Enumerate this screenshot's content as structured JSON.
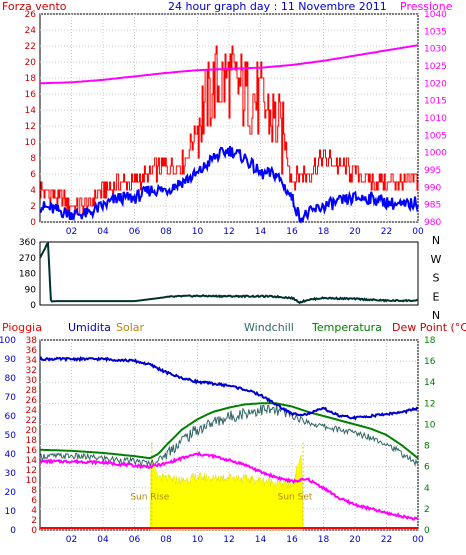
{
  "chart_data": [
    {
      "type": "line",
      "title": "24 hour graph day : 11 Novembre 2011",
      "left_label": "Forza vento",
      "right_label": "Pressione",
      "y_left_ticks": [
        "0",
        "2",
        "4",
        "6",
        "8",
        "10",
        "12",
        "14",
        "16",
        "18",
        "20",
        "22",
        "24",
        "26"
      ],
      "y_right_ticks": [
        "980",
        "985",
        "990",
        "995",
        "1000",
        "1005",
        "1010",
        "1015",
        "1020",
        "1025",
        "1030",
        "1035",
        "1040"
      ],
      "x_ticks": [
        "02",
        "04",
        "06",
        "08",
        "10",
        "12",
        "14",
        "16",
        "18",
        "20",
        "22",
        "00"
      ],
      "ylim_left": [
        0,
        26
      ],
      "ylim_right": [
        980,
        1040
      ],
      "xlim": [
        0,
        24
      ],
      "grid": true,
      "colors": {
        "gust": "#ff0000",
        "speed": "#0000ff",
        "pressure": "#ff00ff",
        "left_axis": "#cc0000",
        "right_axis": "#ff00ff"
      },
      "series": [
        {
          "key": "gust",
          "x": [
            0,
            1,
            2,
            3,
            4,
            5,
            6,
            7,
            8,
            9,
            10,
            10.5,
            11,
            12,
            13,
            14,
            15,
            15.5,
            16,
            16.5,
            17,
            18,
            19,
            20,
            21,
            22,
            23,
            24
          ],
          "y": [
            4,
            3,
            2,
            2,
            4,
            5,
            5,
            6,
            7,
            7,
            12,
            15,
            17,
            18,
            16,
            15,
            12,
            10,
            5,
            6,
            6,
            8,
            7,
            6,
            5,
            5,
            5,
            5
          ]
        },
        {
          "key": "speed",
          "x": [
            0,
            1,
            2,
            3,
            4,
            5,
            6,
            7,
            8,
            9,
            10,
            11,
            12,
            13,
            14,
            15,
            16,
            16.5,
            17,
            18,
            19,
            20,
            21,
            22,
            23,
            24
          ],
          "y": [
            2,
            1.5,
            1,
            1,
            2,
            3,
            3,
            4,
            4,
            5,
            6,
            8,
            9,
            8,
            6,
            6,
            3,
            0.5,
            1,
            2,
            2.5,
            3,
            3,
            2.5,
            2,
            2.5
          ]
        },
        {
          "key": "pressure",
          "x": [
            0,
            2,
            4,
            6,
            8,
            10,
            12,
            14,
            16,
            18,
            20,
            22,
            24
          ],
          "y": [
            1020,
            1020.3,
            1021,
            1022,
            1023,
            1023.8,
            1024.2,
            1024.5,
            1025.3,
            1026.5,
            1028,
            1029.5,
            1031
          ]
        }
      ]
    },
    {
      "type": "line",
      "y_right_ticks": [
        "N",
        "W",
        "S",
        "E",
        "N"
      ],
      "y_left_ticks": [
        "360",
        "270",
        "180",
        "90",
        "0"
      ],
      "ylim": [
        0,
        360
      ],
      "xlim": [
        0,
        24
      ],
      "colors": {
        "direction": "#003030"
      },
      "series": [
        {
          "key": "direction",
          "x": [
            0,
            0.3,
            0.5,
            0.7,
            1,
            3,
            6,
            8,
            9,
            10,
            12,
            14,
            15,
            16,
            16.5,
            17,
            18,
            20,
            22,
            24
          ],
          "y": [
            270,
            320,
            360,
            20,
            22,
            22,
            22,
            45,
            50,
            52,
            50,
            50,
            48,
            40,
            15,
            30,
            40,
            35,
            25,
            25
          ]
        }
      ]
    },
    {
      "type": "line",
      "labels": {
        "pioggia": "Pioggia",
        "umidita": "Umidita",
        "solar": "Solar",
        "windchill": "Windchill",
        "temperatura": "Temperatura",
        "dewpoint": "Dew Point (°C)"
      },
      "y_left_ticks": [
        "0",
        "10",
        "20",
        "30",
        "40",
        "50",
        "60",
        "70",
        "80",
        "90",
        "100"
      ],
      "y_mid_ticks": [
        "0",
        "2",
        "4",
        "6",
        "8",
        "10",
        "12",
        "14",
        "16",
        "18",
        "20",
        "22",
        "24",
        "26",
        "28",
        "30",
        "32",
        "34",
        "36",
        "38"
      ],
      "y_right_ticks": [
        "0",
        "2",
        "4",
        "6",
        "8",
        "10",
        "12",
        "14",
        "16",
        "18"
      ],
      "x_ticks": [
        "02",
        "04",
        "06",
        "08",
        "10",
        "12",
        "14",
        "16",
        "18",
        "20",
        "22",
        "00"
      ],
      "ylim_left": [
        0,
        100
      ],
      "ylim_right": [
        0,
        18
      ],
      "xlim": [
        0,
        24
      ],
      "annotations": {
        "sunrise": "Sun Rise",
        "sunset": "Sun Set"
      },
      "sunrise_hour": 7.1,
      "sunset_hour": 16.7,
      "colors": {
        "humidity": "#0000cc",
        "temperature": "#008000",
        "windchill": "#336666",
        "dewpoint": "#ff00ff",
        "solar": "#ffff00",
        "rain": "#ff0000",
        "pioggia_axis": "#0000cc",
        "mid_axis": "#cc0000",
        "right_axis": "#008000"
      },
      "series": [
        {
          "key": "humidity",
          "x": [
            0,
            2,
            4,
            6,
            7,
            8,
            9,
            10,
            11,
            12,
            13,
            14,
            15,
            16,
            17,
            18,
            19,
            20,
            21,
            22,
            23,
            24
          ],
          "y": [
            90,
            90,
            90,
            89,
            87,
            83,
            80,
            78,
            77,
            76,
            74,
            71,
            66,
            61,
            61,
            64,
            60,
            59,
            60,
            61,
            62,
            64
          ]
        },
        {
          "key": "temperature",
          "x": [
            0,
            2,
            4,
            6,
            7,
            7.5,
            8,
            9,
            10,
            11,
            12,
            13,
            14,
            15,
            16,
            17,
            18,
            19,
            20,
            21,
            22,
            23,
            24
          ],
          "y": [
            7.6,
            7.5,
            7.3,
            7,
            6.8,
            7.2,
            8,
            9.5,
            10.5,
            11.2,
            11.6,
            11.9,
            12,
            12,
            11.7,
            11.2,
            10.8,
            10.4,
            10,
            9.6,
            9,
            8,
            6.8
          ]
        },
        {
          "key": "windchill",
          "x": [
            0,
            2,
            4,
            6,
            7,
            7.5,
            8,
            9,
            10,
            11,
            12,
            13,
            14,
            15,
            16,
            17,
            18,
            19,
            20,
            21,
            22,
            23,
            24
          ],
          "y": [
            7,
            7,
            6.8,
            6.5,
            6.3,
            6.6,
            7.2,
            8.5,
            9.5,
            10.2,
            10.7,
            11.1,
            11.4,
            11.3,
            10.8,
            10.2,
            9.8,
            9.5,
            9.2,
            8.8,
            8.2,
            7.2,
            6.2
          ]
        },
        {
          "key": "dewpoint",
          "x": [
            0,
            2,
            4,
            6,
            7,
            8,
            9,
            10,
            11,
            12,
            13,
            14,
            15,
            16,
            17,
            18,
            19,
            20,
            21,
            22,
            23,
            24
          ],
          "y": [
            6.5,
            6.5,
            6.4,
            6.1,
            6,
            6.3,
            6.8,
            7.2,
            7,
            6.6,
            6.2,
            5.5,
            5,
            4.6,
            4.8,
            4,
            3,
            2.4,
            2,
            1.6,
            1.3,
            1
          ]
        },
        {
          "key": "solar",
          "x": [
            7,
            7.05,
            7.2,
            7.5,
            8,
            9,
            10,
            11,
            12,
            13,
            14,
            15,
            16,
            16.6,
            16.7
          ],
          "y": [
            0,
            40,
            35,
            28,
            27,
            26,
            28,
            27,
            28,
            27,
            26,
            25,
            23,
            40,
            0
          ]
        },
        {
          "key": "rain",
          "x": [
            0,
            24
          ],
          "y": [
            0.3,
            0.3
          ]
        }
      ]
    }
  ]
}
